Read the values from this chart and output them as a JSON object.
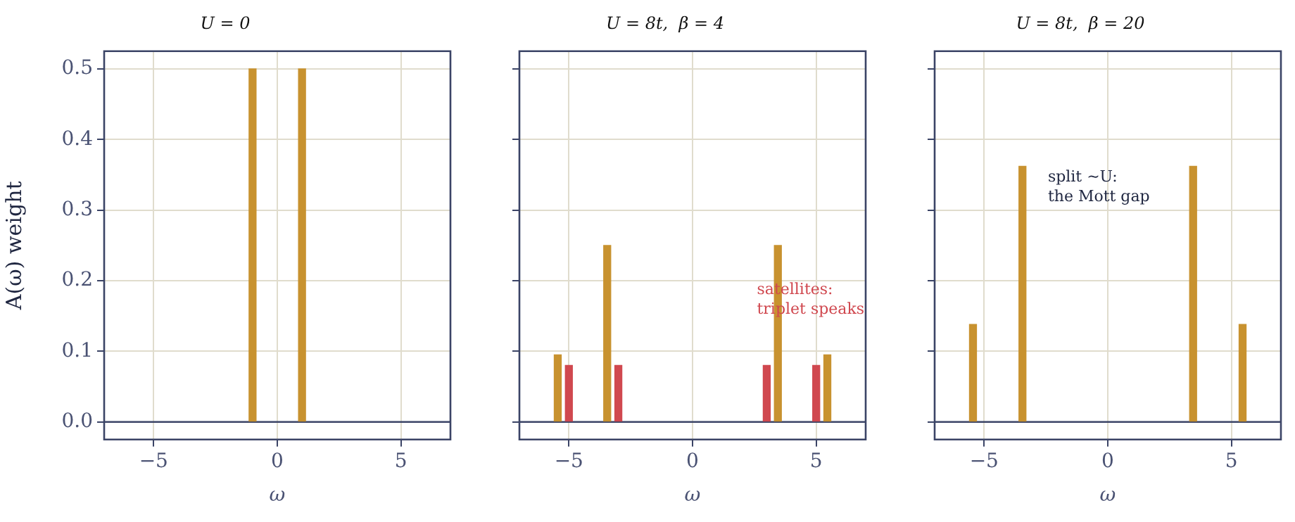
{
  "chart_data": [
    {
      "type": "bar",
      "title": "U = 0",
      "xlabel": "ω",
      "ylabel": "A(ω) weight",
      "xlim": [
        -7,
        7
      ],
      "xticks": [
        -5,
        0,
        5
      ],
      "ylim": [
        -0.025,
        0.525
      ],
      "yticks": [
        {
          "value": 0,
          "label": "0.0"
        },
        0.1,
        0.2,
        0.3,
        0.4,
        0.5
      ],
      "grid": true,
      "legend": false,
      "ref_lines": [
        {
          "axis": "y",
          "value": 0,
          "color": "#3b4466"
        }
      ],
      "series": [
        {
          "color": "#c8922f",
          "x": [
            -1,
            1
          ],
          "values": [
            0.5,
            0.5
          ]
        }
      ]
    },
    {
      "type": "bar",
      "title": "U = 8t,  β = 4",
      "xlabel": "ω",
      "xlim": [
        -7,
        7
      ],
      "xticks": [
        -5,
        0,
        5
      ],
      "ylim": [
        -0.025,
        0.525
      ],
      "yticks": [
        0.0,
        0.1,
        0.2,
        0.3,
        0.4,
        0.5
      ],
      "grid": true,
      "legend": false,
      "tick_labels": "x",
      "ref_lines": [
        {
          "axis": "y",
          "value": 0,
          "color": "#3b4466"
        }
      ],
      "annotations": [
        "satellites:\ntriplet speaks"
      ],
      "series": [
        {
          "color": "#c8922f",
          "x": [
            -5.45,
            -3.45,
            3.45,
            5.45
          ],
          "values": [
            0.095,
            0.25,
            0.25,
            0.095
          ]
        },
        {
          "color": "#d0484f",
          "x": [
            -5,
            -3,
            3,
            5
          ],
          "values": [
            0.08,
            0.08,
            0.08,
            0.08
          ]
        }
      ]
    },
    {
      "type": "bar",
      "title": "U = 8t,  β = 20",
      "xlabel": "ω",
      "xlim": [
        -7,
        7
      ],
      "xticks": [
        -5,
        0,
        5
      ],
      "ylim": [
        -0.025,
        0.525
      ],
      "yticks": [
        0.0,
        0.1,
        0.2,
        0.3,
        0.4,
        0.5
      ],
      "grid": true,
      "legend": false,
      "tick_labels": "x",
      "ref_lines": [
        {
          "axis": "y",
          "value": 0,
          "color": "#3b4466"
        }
      ],
      "annotations": [
        "split ∼U:\nthe Mott gap"
      ],
      "series": [
        {
          "color": "#c8922f",
          "x": [
            -5.45,
            -3.45,
            3.45,
            5.45
          ],
          "values": [
            0.138,
            0.362,
            0.362,
            0.138
          ]
        }
      ]
    }
  ]
}
